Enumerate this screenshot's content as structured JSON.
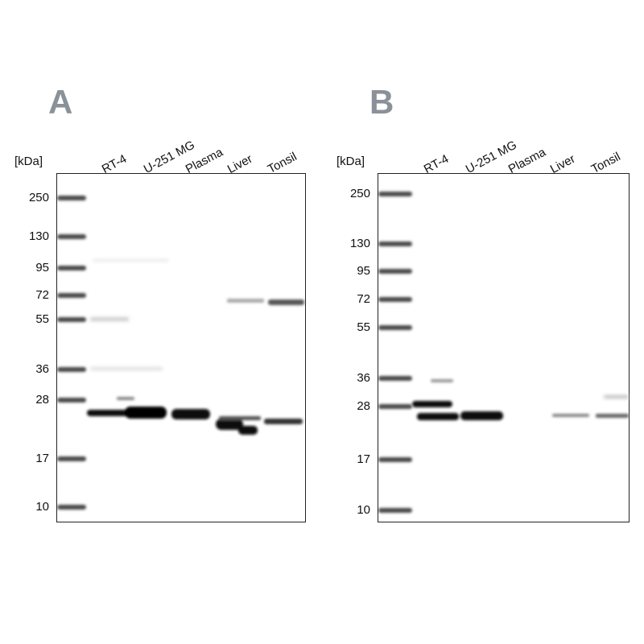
{
  "panels": [
    {
      "label": "A",
      "unit": "[kDa]",
      "lanes": [
        "RT-4",
        "U-251 MG",
        "Plasma",
        "Liver",
        "Tonsil"
      ],
      "markers": [
        "250",
        "130",
        "95",
        "72",
        "55",
        "36",
        "28",
        "17",
        "10"
      ]
    },
    {
      "label": "B",
      "unit": "[kDa]",
      "lanes": [
        "RT-4",
        "U-251 MG",
        "Plasma",
        "Liver",
        "Tonsil"
      ],
      "markers": [
        "250",
        "130",
        "95",
        "72",
        "55",
        "36",
        "28",
        "17",
        "10"
      ]
    }
  ]
}
